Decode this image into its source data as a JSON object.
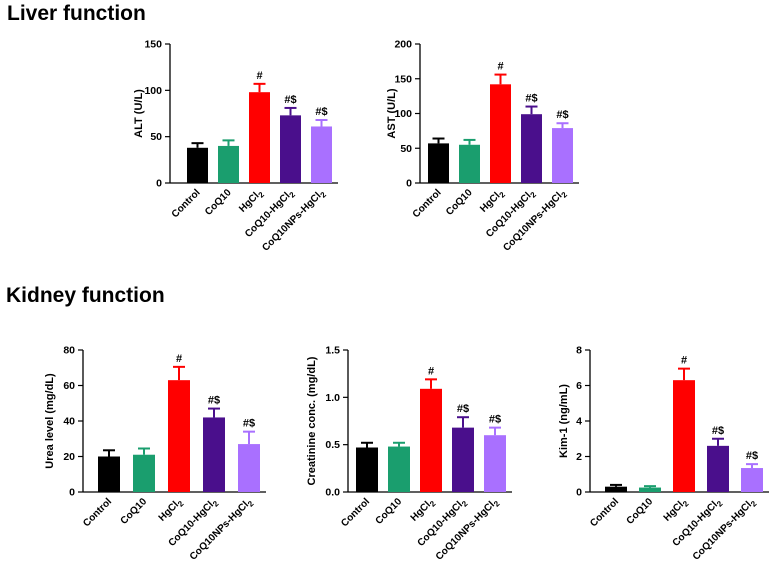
{
  "sections": {
    "liver": "Liver function",
    "kidney": "Kidney function"
  },
  "colors": {
    "Control": "#000000",
    "CoQ10": "#1a9e6e",
    "HgCl2": "#ff0000",
    "CoQ10-HgCl2": "#4a0f8c",
    "CoQ10NPs-HgCl2": "#a970ff"
  },
  "chart_data": [
    {
      "type": "bar",
      "section": "liver",
      "ylabel": "ALT (U/L)",
      "ylim": [
        0,
        150
      ],
      "yticks": [
        "0",
        "50",
        "100",
        "150"
      ],
      "categories": [
        "Control",
        "CoQ10",
        "HgCl2",
        "CoQ10-HgCl2",
        "CoQ10NPs-HgCl2"
      ],
      "values": [
        38,
        40,
        98,
        73,
        61
      ],
      "errors": [
        5,
        6,
        9,
        8,
        7
      ],
      "annotations": [
        "",
        "",
        "#",
        "#$",
        "#$"
      ]
    },
    {
      "type": "bar",
      "section": "liver",
      "ylabel": "AST (U/L)",
      "ylim": [
        0,
        200
      ],
      "yticks": [
        "0",
        "50",
        "100",
        "150",
        "200"
      ],
      "categories": [
        "Control",
        "CoQ10",
        "HgCl2",
        "CoQ10-HgCl2",
        "CoQ10NPs-HgCl2"
      ],
      "values": [
        57,
        55,
        142,
        99,
        79
      ],
      "errors": [
        7,
        7,
        14,
        11,
        7
      ],
      "annotations": [
        "",
        "",
        "#",
        "#$",
        "#$"
      ]
    },
    {
      "type": "bar",
      "section": "kidney",
      "ylabel": "Urea level (mg/dL)",
      "ylim": [
        0,
        80
      ],
      "yticks": [
        "0",
        "20",
        "40",
        "60",
        "80"
      ],
      "categories": [
        "Control",
        "CoQ10",
        "HgCl2",
        "CoQ10-HgCl2",
        "CoQ10NPs-HgCl2"
      ],
      "values": [
        20,
        21,
        63,
        42,
        27
      ],
      "errors": [
        3.5,
        3.5,
        7.5,
        5,
        7
      ],
      "annotations": [
        "",
        "",
        "#",
        "#$",
        "#$"
      ]
    },
    {
      "type": "bar",
      "section": "kidney",
      "ylabel": "Creatinine conc. (mg/dL)",
      "ylim": [
        0,
        1.5
      ],
      "yticks": [
        "0.0",
        "0.5",
        "1.0",
        "1.5"
      ],
      "categories": [
        "Control",
        "CoQ10",
        "HgCl2",
        "CoQ10-HgCl2",
        "CoQ10NPs-HgCl2"
      ],
      "values": [
        0.47,
        0.48,
        1.09,
        0.68,
        0.6
      ],
      "errors": [
        0.05,
        0.04,
        0.1,
        0.11,
        0.08
      ],
      "annotations": [
        "",
        "",
        "#",
        "#$",
        "#$"
      ]
    },
    {
      "type": "bar",
      "section": "kidney",
      "ylabel": "Kim-1 (ng/mL)",
      "ylim": [
        0,
        8
      ],
      "yticks": [
        "0",
        "2",
        "4",
        "6",
        "8"
      ],
      "categories": [
        "Control",
        "CoQ10",
        "HgCl2",
        "CoQ10-HgCl2",
        "CoQ10NPs-HgCl2"
      ],
      "values": [
        0.3,
        0.25,
        6.3,
        2.6,
        1.35
      ],
      "errors": [
        0.1,
        0.08,
        0.65,
        0.4,
        0.22
      ],
      "annotations": [
        "",
        "",
        "#",
        "#$",
        "#$"
      ]
    }
  ]
}
